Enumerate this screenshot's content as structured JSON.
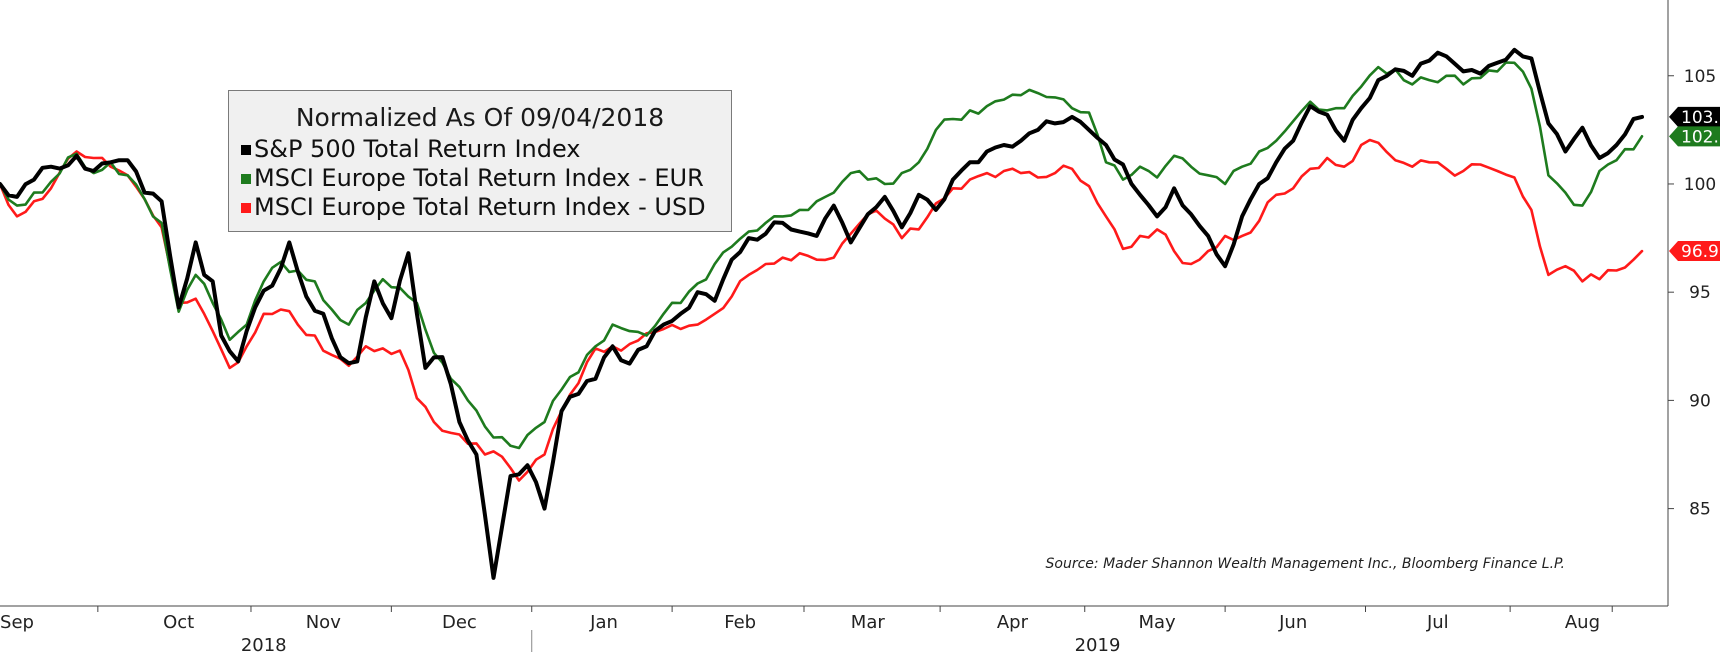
{
  "chart_data": {
    "type": "line",
    "title": "Normalized As Of 09/04/2018",
    "source": "Source: Mader Shannon Wealth Management Inc., Bloomberg Finance L.P.",
    "x_months": [
      {
        "label": "Sep",
        "index": 2
      },
      {
        "label": "Oct",
        "index": 21
      },
      {
        "label": "Nov",
        "index": 38
      },
      {
        "label": "Dec",
        "index": 54
      },
      {
        "label": "Jan",
        "index": 71
      },
      {
        "label": "Feb",
        "index": 87
      },
      {
        "label": "Mar",
        "index": 102
      },
      {
        "label": "Apr",
        "index": 119
      },
      {
        "label": "May",
        "index": 136
      },
      {
        "label": "Jun",
        "index": 152
      },
      {
        "label": "Jul",
        "index": 169
      },
      {
        "label": "Aug",
        "index": 186
      }
    ],
    "x_years": [
      {
        "label": "2018",
        "index": 31
      },
      {
        "label": "2019",
        "index": 129
      }
    ],
    "year_divider_index": 62.5,
    "n_points": 194,
    "ylim": [
      80.5,
      108.5
    ],
    "yticks": [
      85,
      90,
      95,
      100,
      105
    ],
    "series": [
      {
        "name": "S&P 500 Total Return Index",
        "color": "#000000",
        "last_label": "103.",
        "last_value": 103.1,
        "anchors": [
          [
            0,
            100
          ],
          [
            2,
            99.4
          ],
          [
            4,
            100.2
          ],
          [
            6,
            100.8
          ],
          [
            9,
            101.3
          ],
          [
            11,
            100.6
          ],
          [
            13,
            101
          ],
          [
            15,
            101.1
          ],
          [
            17,
            99.6
          ],
          [
            19,
            99.2
          ],
          [
            21,
            94.3
          ],
          [
            23,
            97.3
          ],
          [
            24,
            95.8
          ],
          [
            25,
            95.5
          ],
          [
            26,
            93
          ],
          [
            28,
            91.8
          ],
          [
            30,
            94.3
          ],
          [
            32,
            95.3
          ],
          [
            34,
            97.3
          ],
          [
            36,
            94.8
          ],
          [
            38,
            94
          ],
          [
            40,
            92
          ],
          [
            42,
            91.8
          ],
          [
            44,
            95.5
          ],
          [
            46,
            93.8
          ],
          [
            48,
            96.8
          ],
          [
            50,
            91.5
          ],
          [
            52,
            92
          ],
          [
            54,
            89
          ],
          [
            56,
            87.5
          ],
          [
            58,
            81.8
          ],
          [
            60,
            86.5
          ],
          [
            62,
            87
          ],
          [
            64,
            85
          ],
          [
            66,
            89.5
          ],
          [
            68,
            90.3
          ],
          [
            70,
            91
          ],
          [
            72,
            92.5
          ],
          [
            74,
            91.7
          ],
          [
            76,
            92.5
          ],
          [
            78,
            93.5
          ],
          [
            80,
            94
          ],
          [
            82,
            95
          ],
          [
            84,
            94.6
          ],
          [
            86,
            96.5
          ],
          [
            88,
            97.5
          ],
          [
            90,
            97.7
          ],
          [
            92,
            98.2
          ],
          [
            94,
            97.8
          ],
          [
            96,
            97.6
          ],
          [
            98,
            99
          ],
          [
            100,
            97.3
          ],
          [
            102,
            98.6
          ],
          [
            104,
            99.4
          ],
          [
            106,
            98
          ],
          [
            108,
            99.5
          ],
          [
            110,
            98.8
          ],
          [
            112,
            100.2
          ],
          [
            114,
            101
          ],
          [
            116,
            101.5
          ],
          [
            118,
            101.8
          ],
          [
            120,
            102
          ],
          [
            122,
            102.5
          ],
          [
            124,
            102.8
          ],
          [
            126,
            103.1
          ],
          [
            128,
            102.5
          ],
          [
            130,
            101.8
          ],
          [
            132,
            100.9
          ],
          [
            134,
            99.5
          ],
          [
            136,
            98.5
          ],
          [
            138,
            99.8
          ],
          [
            140,
            98.6
          ],
          [
            142,
            97.6
          ],
          [
            144,
            96.2
          ],
          [
            146,
            98.5
          ],
          [
            148,
            100
          ],
          [
            150,
            101
          ],
          [
            152,
            102
          ],
          [
            154,
            103.6
          ],
          [
            156,
            103.2
          ],
          [
            158,
            102
          ],
          [
            160,
            103.5
          ],
          [
            162,
            104.8
          ],
          [
            164,
            105.3
          ],
          [
            166,
            105
          ],
          [
            168,
            105.7
          ],
          [
            170,
            105.9
          ],
          [
            172,
            105.2
          ],
          [
            174,
            105.1
          ],
          [
            176,
            105.6
          ],
          [
            178,
            106.2
          ],
          [
            180,
            105.8
          ],
          [
            182,
            102.8
          ],
          [
            184,
            101.5
          ],
          [
            186,
            102.6
          ],
          [
            188,
            101.2
          ],
          [
            190,
            101.8
          ],
          [
            192,
            103
          ],
          [
            193,
            103.1
          ]
        ]
      },
      {
        "name": "MSCI Europe Total Return Index - EUR",
        "color": "#1e7b1e",
        "last_label": "102.",
        "last_value": 102.2,
        "anchors": [
          [
            0,
            100
          ],
          [
            2,
            99
          ],
          [
            4,
            99.6
          ],
          [
            6,
            100.1
          ],
          [
            9,
            101.4
          ],
          [
            11,
            100.5
          ],
          [
            13,
            101
          ],
          [
            15,
            100.4
          ],
          [
            17,
            99.3
          ],
          [
            19,
            98.2
          ],
          [
            21,
            94.1
          ],
          [
            23,
            95.8
          ],
          [
            25,
            94.5
          ],
          [
            27,
            92.8
          ],
          [
            29,
            93.5
          ],
          [
            31,
            95.5
          ],
          [
            33,
            96.4
          ],
          [
            35,
            96
          ],
          [
            37,
            95.5
          ],
          [
            39,
            94.2
          ],
          [
            41,
            93.5
          ],
          [
            43,
            94.5
          ],
          [
            45,
            95.6
          ],
          [
            47,
            95.2
          ],
          [
            49,
            94.5
          ],
          [
            51,
            92.2
          ],
          [
            53,
            91
          ],
          [
            55,
            90
          ],
          [
            57,
            88.8
          ],
          [
            59,
            88.3
          ],
          [
            61,
            87.8
          ],
          [
            62,
            88.4
          ],
          [
            64,
            89
          ],
          [
            66,
            90.5
          ],
          [
            68,
            91.3
          ],
          [
            70,
            92.5
          ],
          [
            72,
            93.5
          ],
          [
            74,
            93.2
          ],
          [
            76,
            93
          ],
          [
            78,
            94
          ],
          [
            80,
            94.5
          ],
          [
            82,
            95.4
          ],
          [
            84,
            96.3
          ],
          [
            86,
            97.1
          ],
          [
            88,
            97.8
          ],
          [
            90,
            98.2
          ],
          [
            92,
            98.5
          ],
          [
            94,
            98.8
          ],
          [
            96,
            99.2
          ],
          [
            98,
            99.6
          ],
          [
            100,
            100.5
          ],
          [
            102,
            100.2
          ],
          [
            104,
            100
          ],
          [
            106,
            100.5
          ],
          [
            108,
            101
          ],
          [
            110,
            102.5
          ],
          [
            112,
            103
          ],
          [
            114,
            103.4
          ],
          [
            116,
            103.6
          ],
          [
            118,
            103.9
          ],
          [
            120,
            104.1
          ],
          [
            122,
            104.2
          ],
          [
            124,
            104
          ],
          [
            126,
            103.5
          ],
          [
            128,
            103.3
          ],
          [
            130,
            101
          ],
          [
            132,
            100.2
          ],
          [
            134,
            100.8
          ],
          [
            136,
            100.3
          ],
          [
            138,
            101.3
          ],
          [
            140,
            100.8
          ],
          [
            142,
            100.4
          ],
          [
            144,
            100
          ],
          [
            146,
            100.8
          ],
          [
            148,
            101.5
          ],
          [
            150,
            102
          ],
          [
            152,
            102.9
          ],
          [
            154,
            103.8
          ],
          [
            156,
            103.4
          ],
          [
            158,
            103.5
          ],
          [
            160,
            104.5
          ],
          [
            162,
            105.4
          ],
          [
            164,
            105.3
          ],
          [
            166,
            104.6
          ],
          [
            168,
            104.8
          ],
          [
            170,
            105
          ],
          [
            172,
            104.6
          ],
          [
            174,
            104.9
          ],
          [
            176,
            105.2
          ],
          [
            178,
            105.6
          ],
          [
            180,
            104.4
          ],
          [
            182,
            100.4
          ],
          [
            184,
            99.6
          ],
          [
            186,
            99
          ],
          [
            188,
            100.6
          ],
          [
            190,
            101.1
          ],
          [
            192,
            101.6
          ],
          [
            193,
            102.2
          ]
        ]
      },
      {
        "name": "MSCI Europe Total Return Index - USD",
        "color": "#ff1a1a",
        "last_label": "96.9",
        "last_value": 96.9,
        "anchors": [
          [
            0,
            100
          ],
          [
            2,
            98.5
          ],
          [
            4,
            99.2
          ],
          [
            6,
            99.8
          ],
          [
            9,
            101.5
          ],
          [
            11,
            101.2
          ],
          [
            13,
            100.8
          ],
          [
            15,
            100.4
          ],
          [
            17,
            99.3
          ],
          [
            19,
            98
          ],
          [
            21,
            94.5
          ],
          [
            23,
            94.7
          ],
          [
            25,
            93.2
          ],
          [
            27,
            91.5
          ],
          [
            29,
            92.5
          ],
          [
            31,
            94
          ],
          [
            33,
            94.2
          ],
          [
            35,
            93.5
          ],
          [
            37,
            93
          ],
          [
            39,
            92.1
          ],
          [
            41,
            91.6
          ],
          [
            43,
            92.5
          ],
          [
            45,
            92.4
          ],
          [
            47,
            92.3
          ],
          [
            49,
            90.1
          ],
          [
            51,
            89
          ],
          [
            53,
            88.5
          ],
          [
            55,
            88
          ],
          [
            57,
            87.5
          ],
          [
            59,
            87.4
          ],
          [
            61,
            86.3
          ],
          [
            62,
            86.7
          ],
          [
            64,
            87.5
          ],
          [
            66,
            89.5
          ],
          [
            68,
            90.8
          ],
          [
            70,
            92.4
          ],
          [
            72,
            92.5
          ],
          [
            74,
            92.6
          ],
          [
            76,
            93.1
          ],
          [
            78,
            93.3
          ],
          [
            80,
            93.3
          ],
          [
            82,
            93.5
          ],
          [
            84,
            94
          ],
          [
            86,
            94.8
          ],
          [
            88,
            95.8
          ],
          [
            90,
            96.3
          ],
          [
            92,
            96.6
          ],
          [
            94,
            96.8
          ],
          [
            96,
            96.5
          ],
          [
            98,
            96.6
          ],
          [
            100,
            97.7
          ],
          [
            102,
            98.6
          ],
          [
            104,
            98.4
          ],
          [
            106,
            97.5
          ],
          [
            108,
            97.9
          ],
          [
            110,
            99.1
          ],
          [
            112,
            99.8
          ],
          [
            114,
            100.2
          ],
          [
            116,
            100.5
          ],
          [
            118,
            100.6
          ],
          [
            120,
            100.5
          ],
          [
            122,
            100.3
          ],
          [
            124,
            100.5
          ],
          [
            126,
            100.7
          ],
          [
            128,
            99.9
          ],
          [
            130,
            98.5
          ],
          [
            132,
            97
          ],
          [
            134,
            97.6
          ],
          [
            136,
            97.9
          ],
          [
            138,
            96.9
          ],
          [
            140,
            96.3
          ],
          [
            142,
            96.9
          ],
          [
            144,
            97.6
          ],
          [
            146,
            97.6
          ],
          [
            148,
            98.3
          ],
          [
            150,
            99.5
          ],
          [
            152,
            99.8
          ],
          [
            154,
            100.7
          ],
          [
            156,
            101.2
          ],
          [
            158,
            100.8
          ],
          [
            160,
            101.8
          ],
          [
            162,
            101.9
          ],
          [
            164,
            101.1
          ],
          [
            166,
            100.8
          ],
          [
            168,
            101
          ],
          [
            170,
            100.7
          ],
          [
            172,
            100.6
          ],
          [
            174,
            100.9
          ],
          [
            176,
            100.6
          ],
          [
            178,
            100.3
          ],
          [
            180,
            98.8
          ],
          [
            182,
            95.8
          ],
          [
            184,
            96.2
          ],
          [
            186,
            95.5
          ],
          [
            188,
            95.6
          ],
          [
            190,
            96
          ],
          [
            192,
            96.5
          ],
          [
            193,
            96.9
          ]
        ]
      }
    ]
  }
}
